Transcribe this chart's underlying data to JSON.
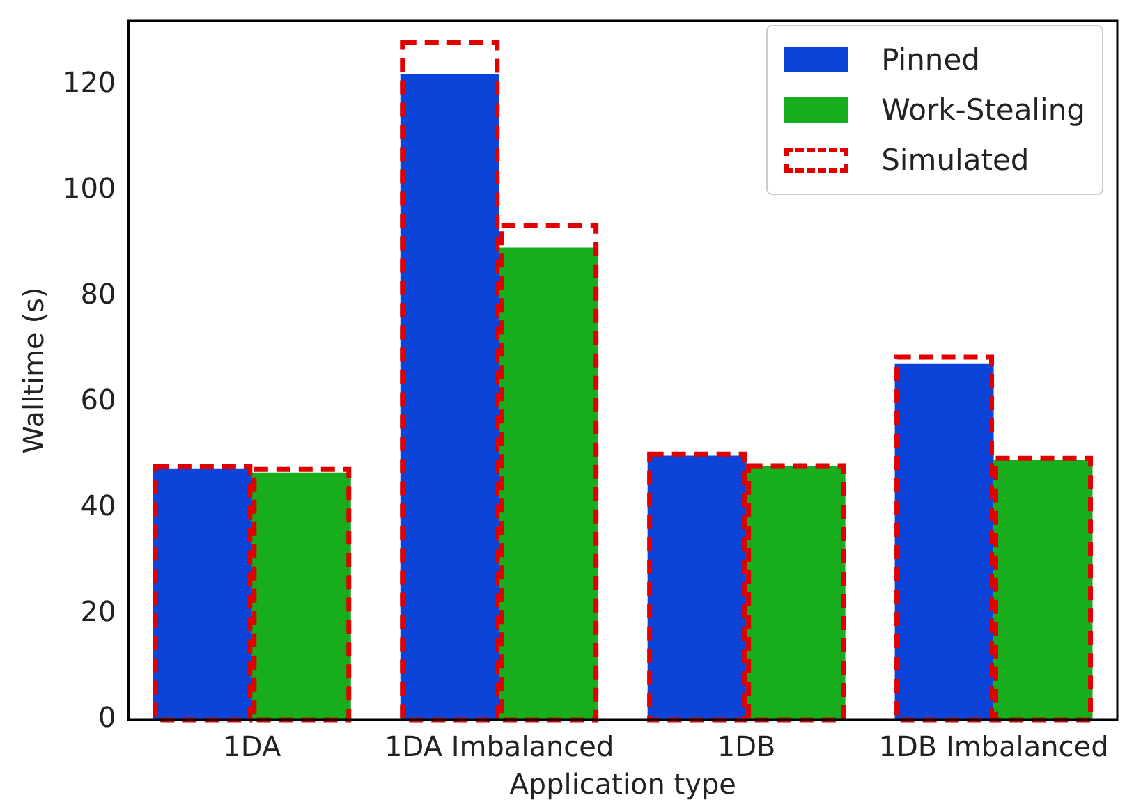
{
  "chart_data": {
    "type": "bar",
    "xlabel": "Application type",
    "ylabel": "Walltime (s)",
    "categories": [
      "1DA",
      "1DA Imbalanced",
      "1DB",
      "1DB Imbalanced"
    ],
    "series": [
      {
        "name": "Pinned",
        "color": "#0a44d8",
        "values": [
          47.5,
          122,
          49.9,
          67.2
        ]
      },
      {
        "name": "Work-Stealing",
        "color": "#17ad1d",
        "values": [
          46.7,
          89.2,
          48,
          49.1
        ]
      },
      {
        "name": "Simulated",
        "color": "#e00000",
        "line_style": "dashed",
        "values": [
          47.8,
          128,
          50.2,
          68.5
        ]
      },
      {
        "color": "#e00000",
        "line_style": "dashed",
        "values": [
          47.3,
          93.4,
          48,
          49.4
        ]
      }
    ],
    "ylim": [
      0,
      132
    ],
    "yticks": [
      0,
      20,
      40,
      60,
      80,
      100,
      120
    ],
    "grid": false,
    "legend": "top right"
  }
}
